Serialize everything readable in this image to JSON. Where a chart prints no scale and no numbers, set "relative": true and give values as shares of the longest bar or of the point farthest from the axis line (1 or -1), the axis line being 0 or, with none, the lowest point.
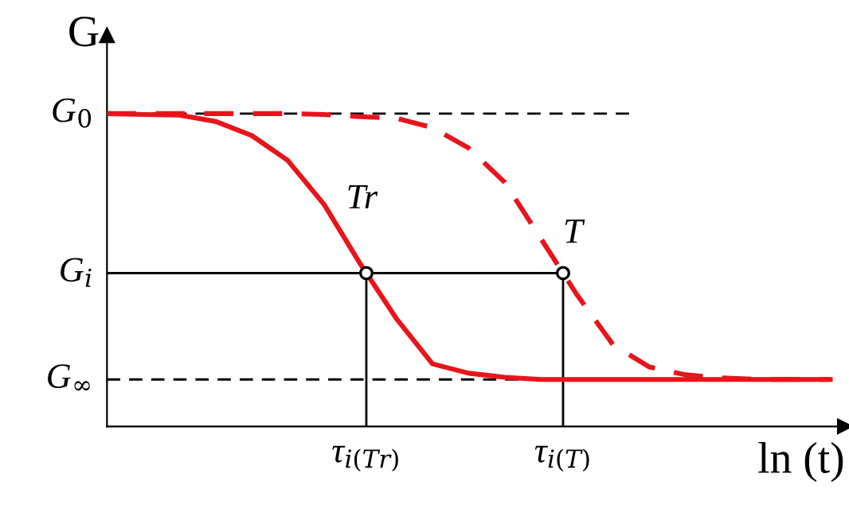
{
  "chart_data": {
    "type": "line",
    "relative": true,
    "xlabel": "ln (t)",
    "ylabel": "G",
    "categories": [
      null,
      null,
      null,
      null,
      null,
      null,
      null,
      null,
      null,
      null,
      null,
      null,
      null,
      null,
      null,
      null,
      null,
      null,
      null,
      null,
      null
    ],
    "series": [
      {
        "name": "Tr",
        "color": "#e8141c",
        "line_style": "solid",
        "values": [
          1,
          0.997,
          0.995,
          0.975,
          0.93,
          0.85,
          0.71,
          0.52,
          0.345,
          0.2,
          0.17,
          0.157,
          0.15,
          0.15,
          0.15,
          0.15,
          0.15,
          0.15,
          0.15,
          0.15,
          0.15
        ]
      },
      {
        "name": "T",
        "color": "#e8141c",
        "line_style": "dashed",
        "values": [
          1,
          1,
          1,
          1,
          1,
          1,
          0.997,
          0.99,
          0.985,
          0.955,
          0.89,
          0.78,
          0.6,
          0.42,
          0.26,
          0.19,
          0.165,
          0.155,
          0.15,
          0.15,
          0.15
        ]
      }
    ],
    "ref_lines": [
      {
        "axis": "y",
        "value": 1,
        "label": "G$_{0}$",
        "line_style": "dashed",
        "color": "#000000"
      },
      {
        "axis": "y",
        "value": 0.49,
        "label": "G$_{i}$",
        "line_style": "solid",
        "color": "#000000"
      },
      {
        "axis": "y",
        "value": 0.15,
        "label": "G$_{∞}$",
        "line_style": "dashed",
        "color": "#000000"
      }
    ],
    "annotations": [
      "τ$_{i(Tr)}$",
      "τ$_{i(T)}$"
    ]
  }
}
